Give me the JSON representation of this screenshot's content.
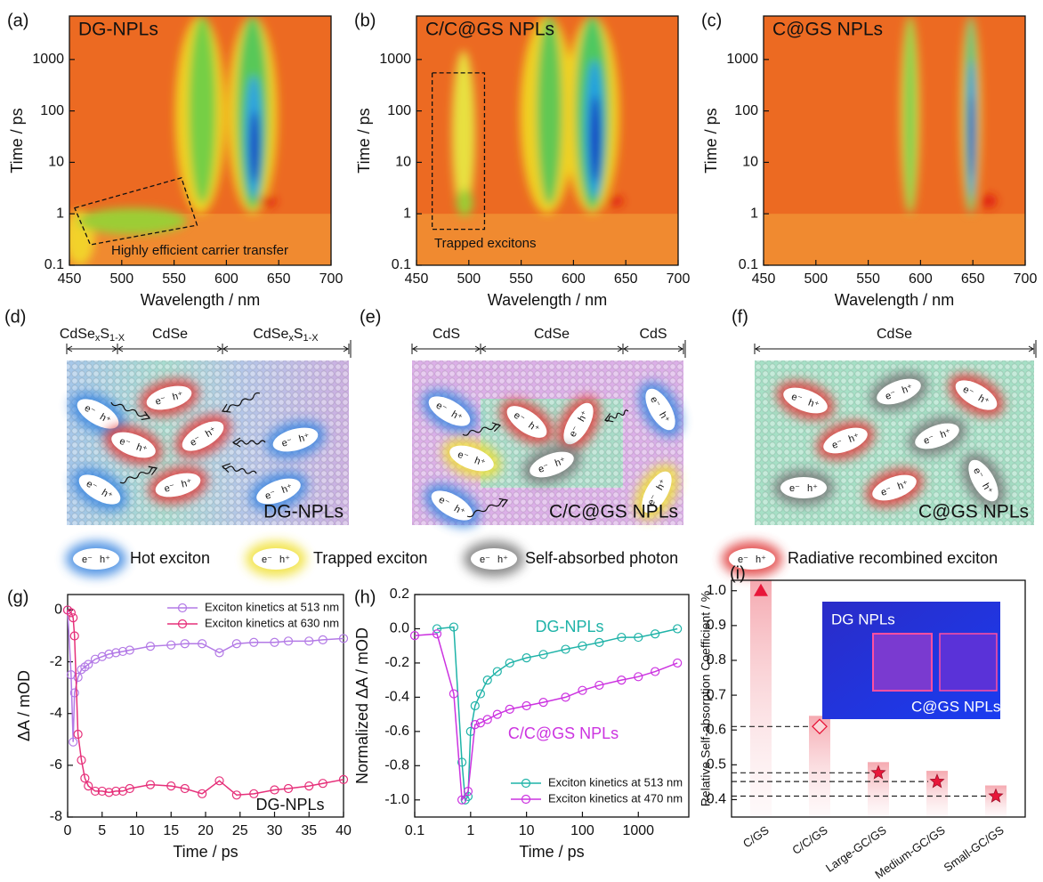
{
  "chart_data": [
    {
      "type": "heatmap",
      "panel": "(a)",
      "title": "DG-NPLs",
      "annotation": "Highly efficient carrier transfer",
      "xlabel": "Wavelength / nm",
      "ylabel": "Time / ps",
      "xlim": [
        450,
        700
      ],
      "xticks": [
        450,
        500,
        550,
        600,
        650,
        700
      ],
      "ylim": [
        0.1,
        7000
      ],
      "yticks": [
        0.1,
        1,
        10,
        100,
        1000
      ],
      "log_y": true
    },
    {
      "type": "heatmap",
      "panel": "(b)",
      "title": "C/C@GS NPLs",
      "annotation": "Trapped excitons",
      "xlabel": "Wavelength / nm",
      "ylabel": "Time / ps",
      "xlim": [
        450,
        700
      ],
      "xticks": [
        450,
        500,
        550,
        600,
        650,
        700
      ],
      "ylim": [
        0.1,
        7000
      ],
      "yticks": [
        0.1,
        1,
        10,
        100,
        1000
      ],
      "log_y": true
    },
    {
      "type": "heatmap",
      "panel": "(c)",
      "title": "C@GS NPLs",
      "xlabel": "Wavelength / nm",
      "ylabel": "Time / ps",
      "xlim": [
        450,
        700
      ],
      "xticks": [
        450,
        500,
        550,
        600,
        650,
        700
      ],
      "ylim": [
        0.1,
        7000
      ],
      "yticks": [
        0.1,
        1,
        10,
        100,
        1000
      ],
      "log_y": true
    },
    {
      "type": "line",
      "panel": "(g)",
      "xlabel": "Time / ps",
      "ylabel": "ΔA / mOD",
      "annotations": [
        "DG-NPLs"
      ],
      "x": [
        0,
        0.5,
        0.8,
        1,
        1.5,
        2,
        2.5,
        3,
        4,
        5,
        6,
        7,
        8,
        9,
        12,
        15,
        17,
        19.5,
        22,
        24.5,
        27,
        30,
        32,
        35,
        37,
        40
      ],
      "series": [
        {
          "name": "Exciton kinetics at 513 nm",
          "color": "#b37ae6",
          "values": [
            0,
            -2.5,
            -5.1,
            -3.2,
            -2.6,
            -2.3,
            -2.2,
            -2.1,
            -1.9,
            -1.8,
            -1.7,
            -1.65,
            -1.6,
            -1.55,
            -1.4,
            -1.35,
            -1.3,
            -1.3,
            -1.65,
            -1.3,
            -1.25,
            -1.25,
            -1.2,
            -1.2,
            -1.15,
            -1.1
          ]
        },
        {
          "name": "Exciton kinetics at 630 nm",
          "color": "#e6307a",
          "values": [
            0,
            -0.1,
            -0.3,
            -1,
            -4.8,
            -5.8,
            -6.5,
            -6.8,
            -7.0,
            -7.0,
            -7.05,
            -7.0,
            -7.0,
            -6.9,
            -6.75,
            -6.8,
            -6.9,
            -7.1,
            -6.6,
            -7.15,
            -7.1,
            -6.95,
            -6.9,
            -6.8,
            -6.7,
            -6.55
          ]
        }
      ],
      "xlim": [
        0,
        40
      ],
      "xticks": [
        0,
        5,
        10,
        15,
        20,
        25,
        30,
        35,
        40
      ],
      "ylim": [
        -8,
        0.6
      ],
      "yticks": [
        -8,
        -6,
        -4,
        -2,
        0
      ],
      "legend": "upper right"
    },
    {
      "type": "line",
      "panel": "(h)",
      "xlabel": "Time / ps",
      "ylabel": "Normalized ΔA / mOD",
      "annotations": [
        "DG-NPLs",
        "C/C@GS NPLs"
      ],
      "series": [
        {
          "name": "Exciton kinetics at 513 nm",
          "color": "#1fb3a8",
          "x": [
            0.25,
            0.5,
            0.7,
            0.8,
            0.9,
            1,
            1.2,
            1.5,
            2,
            3,
            5,
            10,
            20,
            50,
            100,
            200,
            500,
            1000,
            2000,
            5000
          ],
          "values": [
            0,
            0.01,
            -0.78,
            -1,
            -0.98,
            -0.6,
            -0.45,
            -0.38,
            -0.3,
            -0.25,
            -0.2,
            -0.17,
            -0.15,
            -0.12,
            -0.1,
            -0.08,
            -0.05,
            -0.05,
            -0.03,
            0
          ]
        },
        {
          "name": "Exciton kinetics at 470 nm",
          "color": "#cc33e0",
          "x": [
            0.1,
            0.25,
            0.5,
            0.7,
            0.9,
            1.2,
            1.5,
            2,
            3,
            5,
            10,
            20,
            50,
            100,
            200,
            500,
            1000,
            2000,
            5000
          ],
          "values": [
            -0.04,
            -0.03,
            -0.38,
            -1,
            -0.95,
            -0.56,
            -0.55,
            -0.53,
            -0.5,
            -0.47,
            -0.45,
            -0.43,
            -0.4,
            -0.36,
            -0.33,
            -0.3,
            -0.28,
            -0.25,
            -0.2
          ]
        }
      ],
      "xlim": [
        0.1,
        8000
      ],
      "log_x": true,
      "xticks": [
        0.1,
        1,
        10,
        100,
        1000
      ],
      "ylim": [
        -1.1,
        0.2
      ],
      "yticks": [
        {
          "value": -1,
          "label": "-1.0"
        },
        -0.8,
        -0.6,
        -0.4,
        -0.2,
        {
          "value": 0,
          "label": "0.0"
        },
        0.2
      ],
      "legend": "lower right"
    },
    {
      "type": "dot",
      "panel": "(i)",
      "ylabel": "Relative Self-absorption Coefficient / %",
      "categories": [
        "C/GS",
        "C/C/GS",
        "Large-GC/GS",
        "Medium-GC/GS",
        "Small-GC/GS"
      ],
      "values": [
        1.0,
        0.61,
        0.477,
        0.452,
        0.41
      ],
      "markers": [
        "triangle",
        "diamond",
        "star",
        "star",
        "star"
      ],
      "color": "#e8173a",
      "ylim": [
        0.35,
        1.03
      ],
      "yticks": [
        0.4,
        0.5,
        0.6,
        0.7,
        0.8,
        0.9,
        {
          "value": 1,
          "label": "1.0"
        }
      ],
      "inset": [
        "DG NPLs",
        "C@GS NPLs"
      ]
    }
  ],
  "diagrams": [
    {
      "panel": "(d)",
      "segments": [
        {
          "parts": [
            "CdSe",
            "x",
            "S",
            "1-X"
          ]
        },
        {
          "parts": [
            "CdSe"
          ]
        },
        {
          "parts": [
            "CdSe",
            "x",
            "S",
            "1-X"
          ]
        }
      ],
      "label": "DG-NPLs"
    },
    {
      "panel": "(e)",
      "segments": [
        {
          "parts": [
            "CdS"
          ]
        },
        {
          "parts": [
            "CdSe"
          ]
        },
        {
          "parts": [
            "CdS"
          ]
        }
      ],
      "label": "C/C@GS NPLs"
    },
    {
      "panel": "(f)",
      "segments": [
        {
          "parts": [
            "CdSe"
          ]
        }
      ],
      "label": "C@GS NPLs"
    }
  ],
  "carriers": {
    "electron": "e⁻",
    "hole": "h⁺"
  },
  "legend": [
    "Hot exciton",
    "Trapped exciton",
    "Self-absorbed photon",
    "Radiative recombined exciton"
  ]
}
